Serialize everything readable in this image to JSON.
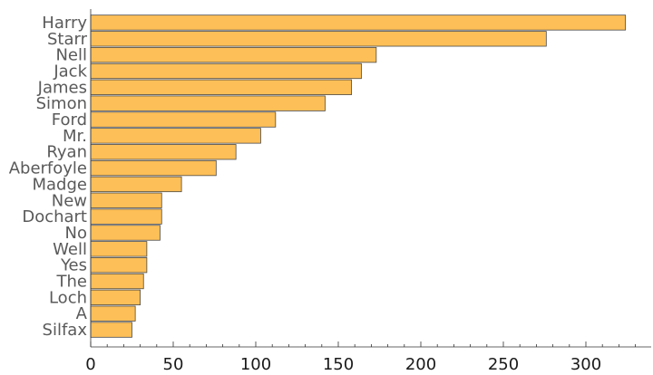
{
  "chart_data": {
    "type": "bar",
    "orientation": "horizontal",
    "categories": [
      "Harry",
      "Starr",
      "Nell",
      "Jack",
      "James",
      "Simon",
      "Ford",
      "Mr.",
      "Ryan",
      "Aberfoyle",
      "Madge",
      "New",
      "Dochart",
      "No",
      "Well",
      "Yes",
      "The",
      "Loch",
      "A",
      "Silfax"
    ],
    "values": [
      324,
      276,
      173,
      164,
      158,
      142,
      112,
      103,
      88,
      76,
      55,
      43,
      43,
      42,
      34,
      34,
      32,
      30,
      27,
      25
    ],
    "xlim": [
      0,
      340
    ],
    "xticks": [
      0,
      50,
      100,
      150,
      200,
      250,
      300
    ],
    "title": "",
    "xlabel": "",
    "ylabel": "",
    "grid": false,
    "bar_color": "#fdbf57",
    "bar_edge_color": "#4a4a4a"
  }
}
